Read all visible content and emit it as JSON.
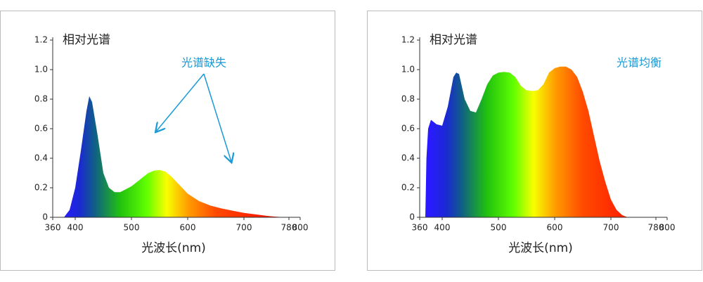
{
  "chart_data": [
    {
      "type": "area",
      "ylabel": "相对光谱",
      "xlabel": "光波长(nm)",
      "annotation": "光谱缺失",
      "x": [
        380,
        390,
        400,
        410,
        420,
        425,
        430,
        440,
        450,
        460,
        470,
        480,
        490,
        500,
        510,
        520,
        530,
        540,
        550,
        560,
        570,
        580,
        590,
        600,
        620,
        640,
        660,
        680,
        700,
        720,
        740,
        760,
        780
      ],
      "values": [
        0,
        0.05,
        0.2,
        0.45,
        0.72,
        0.82,
        0.78,
        0.55,
        0.3,
        0.2,
        0.17,
        0.17,
        0.19,
        0.21,
        0.24,
        0.27,
        0.3,
        0.315,
        0.32,
        0.31,
        0.28,
        0.24,
        0.2,
        0.16,
        0.11,
        0.08,
        0.06,
        0.045,
        0.03,
        0.02,
        0.01,
        0.003,
        0
      ],
      "xlim": [
        360,
        800
      ],
      "xticks": [
        360,
        400,
        500,
        600,
        700,
        780,
        800
      ],
      "ylim": [
        0,
        1.2
      ],
      "yticks": [
        0,
        0.2,
        0.4,
        0.6,
        0.8,
        {
          "value": 1,
          "label": "1.0"
        },
        1.2
      ]
    },
    {
      "type": "area",
      "ylabel": "相对光谱",
      "xlabel": "光波长(nm)",
      "annotation": "光谱均衡",
      "x": [
        370,
        372,
        375,
        380,
        390,
        400,
        410,
        420,
        425,
        430,
        440,
        450,
        460,
        470,
        480,
        490,
        500,
        510,
        520,
        530,
        540,
        550,
        560,
        570,
        580,
        590,
        600,
        610,
        620,
        630,
        640,
        650,
        660,
        670,
        680,
        690,
        700,
        710,
        720,
        730
      ],
      "values": [
        0,
        0.4,
        0.6,
        0.66,
        0.63,
        0.62,
        0.75,
        0.95,
        0.98,
        0.97,
        0.8,
        0.72,
        0.71,
        0.8,
        0.9,
        0.96,
        0.98,
        0.985,
        0.98,
        0.95,
        0.89,
        0.86,
        0.855,
        0.86,
        0.9,
        0.98,
        1.01,
        1.02,
        1.02,
        1.0,
        0.95,
        0.85,
        0.72,
        0.55,
        0.38,
        0.24,
        0.12,
        0.05,
        0.015,
        0
      ],
      "xlim": [
        360,
        800
      ],
      "xticks": [
        360,
        400,
        500,
        600,
        700,
        780,
        800
      ],
      "ylim": [
        0,
        1.2
      ],
      "yticks": [
        0,
        0.2,
        0.4,
        0.6,
        0.8,
        {
          "value": 1,
          "label": "1.0"
        },
        1.2
      ]
    }
  ]
}
